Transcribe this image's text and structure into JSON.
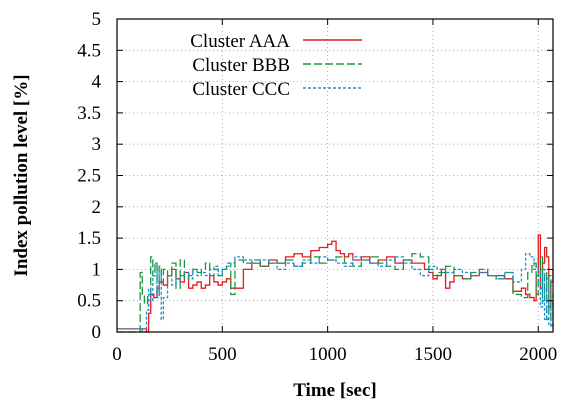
{
  "chart_data": {
    "type": "line",
    "title": "",
    "xlabel": "Time [sec]",
    "ylabel": "Index pollution level [%]",
    "xlim": [
      0,
      2070
    ],
    "ylim": [
      0,
      5
    ],
    "xticks": [
      0,
      500,
      1000,
      1500,
      2000
    ],
    "xtick_labels": [
      "0",
      "500",
      "1000",
      "1500",
      "2000"
    ],
    "yticks": [
      0,
      0.5,
      1,
      1.5,
      2,
      2.5,
      3,
      3.5,
      4,
      4.5,
      5
    ],
    "ytick_labels": [
      "0",
      "0.5",
      "1",
      "1.5",
      "2",
      "2.5",
      "3",
      "3.5",
      "4",
      "4.5",
      "5"
    ],
    "grid": true,
    "legend_position": "top-left",
    "series": [
      {
        "name": "Cluster AAA",
        "color": "#e41a1c",
        "dash": "solid",
        "x": [
          0,
          140,
          150,
          160,
          175,
          190,
          200,
          220,
          240,
          260,
          280,
          300,
          320,
          340,
          360,
          380,
          400,
          420,
          440,
          460,
          480,
          500,
          520,
          540,
          560,
          600,
          640,
          680,
          720,
          760,
          800,
          840,
          880,
          920,
          960,
          1000,
          1020,
          1040,
          1060,
          1080,
          1100,
          1120,
          1160,
          1200,
          1240,
          1280,
          1320,
          1360,
          1400,
          1440,
          1460,
          1480,
          1500,
          1520,
          1540,
          1560,
          1580,
          1600,
          1640,
          1680,
          1720,
          1760,
          1800,
          1840,
          1880,
          1920,
          1940,
          1960,
          1980,
          1990,
          2000,
          2010,
          2020,
          2030,
          2040,
          2050,
          2060,
          2070
        ],
        "values": [
          0.05,
          0,
          0.3,
          0.6,
          0.55,
          0.7,
          0.8,
          0.75,
          0.9,
          1.0,
          0.85,
          0.8,
          0.95,
          0.7,
          0.75,
          0.8,
          0.7,
          0.75,
          0.9,
          0.8,
          0.75,
          0.8,
          0.85,
          0.7,
          0.7,
          1.0,
          1.1,
          1.05,
          1.15,
          1.1,
          1.2,
          1.25,
          1.2,
          1.3,
          1.35,
          1.4,
          1.45,
          1.3,
          1.25,
          1.2,
          1.25,
          1.15,
          1.2,
          1.1,
          1.15,
          1.2,
          1.1,
          1.15,
          1.1,
          1.1,
          1.0,
          0.95,
          0.85,
          0.9,
          1.0,
          0.7,
          0.8,
          0.9,
          0.85,
          0.9,
          0.95,
          0.9,
          0.9,
          0.85,
          0.65,
          0.7,
          0.6,
          0.55,
          0.5,
          0.9,
          1.55,
          0.7,
          1.1,
          1.35,
          1.2,
          0.4,
          0.8,
          1.0
        ]
      },
      {
        "name": "Cluster BBB",
        "color": "#1a9641",
        "dash": "8,3",
        "x": [
          0,
          100,
          110,
          120,
          130,
          145,
          160,
          170,
          180,
          190,
          200,
          210,
          220,
          240,
          260,
          280,
          300,
          320,
          340,
          360,
          380,
          400,
          420,
          440,
          460,
          480,
          500,
          520,
          540,
          560,
          600,
          640,
          680,
          720,
          760,
          800,
          840,
          880,
          920,
          960,
          1000,
          1040,
          1080,
          1120,
          1160,
          1200,
          1240,
          1280,
          1320,
          1360,
          1400,
          1440,
          1480,
          1500,
          1520,
          1560,
          1600,
          1640,
          1680,
          1720,
          1760,
          1800,
          1840,
          1880,
          1920,
          1950,
          1970,
          1990,
          2000,
          2010,
          2020,
          2030,
          2040,
          2050,
          2060,
          2070
        ],
        "values": [
          0.0,
          0,
          0.95,
          0.6,
          0.45,
          0.6,
          1.2,
          0.9,
          1.1,
          0.6,
          1.05,
          0.8,
          1.0,
          0.9,
          1.1,
          0.7,
          1.15,
          0.85,
          0.9,
          1.0,
          0.95,
          1.0,
          1.1,
          0.9,
          1.0,
          0.9,
          1.0,
          1.1,
          0.6,
          1.15,
          1.1,
          1.15,
          1.05,
          1.1,
          1.1,
          1.15,
          1.05,
          1.1,
          1.2,
          1.1,
          1.15,
          1.2,
          1.1,
          1.05,
          1.15,
          1.2,
          1.1,
          1.05,
          1.0,
          1.15,
          1.25,
          1.2,
          1.0,
          0.9,
          0.95,
          1.05,
          0.9,
          0.85,
          0.95,
          1.0,
          0.9,
          0.85,
          0.95,
          0.6,
          0.55,
          0.95,
          1.1,
          0.6,
          0.85,
          1.2,
          0.5,
          0.95,
          0.2,
          0.9,
          0.1,
          0.6
        ]
      },
      {
        "name": "Cluster CCC",
        "color": "#1f8fd0",
        "dash": "3,2",
        "x": [
          0,
          120,
          140,
          150,
          160,
          170,
          180,
          190,
          200,
          210,
          220,
          240,
          260,
          280,
          300,
          320,
          340,
          360,
          380,
          400,
          420,
          440,
          460,
          480,
          500,
          520,
          540,
          560,
          600,
          640,
          680,
          720,
          760,
          800,
          840,
          880,
          920,
          960,
          1000,
          1040,
          1080,
          1120,
          1160,
          1200,
          1240,
          1280,
          1320,
          1360,
          1400,
          1440,
          1480,
          1520,
          1560,
          1600,
          1640,
          1680,
          1720,
          1760,
          1800,
          1840,
          1880,
          1920,
          1940,
          1960,
          1980,
          2000,
          2010,
          2020,
          2030,
          2040,
          2050,
          2060,
          2070
        ],
        "values": [
          0.05,
          0,
          0.35,
          0.7,
          0.5,
          0.9,
          1.1,
          0.55,
          0.95,
          0.2,
          0.55,
          0.9,
          0.75,
          0.85,
          0.9,
          0.95,
          0.85,
          1.0,
          0.9,
          0.95,
          0.9,
          1.0,
          1.05,
          0.9,
          1.0,
          1.05,
          1.1,
          1.2,
          1.15,
          1.1,
          1.15,
          1.1,
          1.0,
          1.1,
          1.05,
          1.15,
          1.1,
          1.2,
          1.15,
          1.1,
          1.05,
          1.2,
          1.15,
          1.1,
          1.05,
          1.15,
          1.2,
          1.1,
          1.0,
          0.9,
          1.05,
          1.0,
          0.95,
          1.0,
          0.95,
          0.9,
          0.95,
          0.9,
          0.85,
          0.95,
          0.8,
          1.0,
          1.25,
          1.2,
          1.0,
          0.8,
          0.4,
          1.0,
          0.2,
          0.85,
          0.1,
          0.5,
          0.3
        ]
      }
    ]
  }
}
